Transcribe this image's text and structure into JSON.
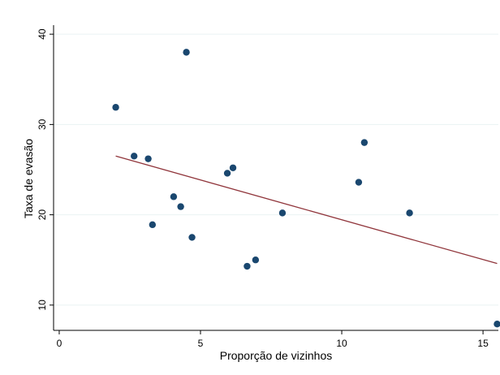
{
  "chart_data": {
    "type": "scatter",
    "xlabel": "Proporção de vizinhos",
    "ylabel": "Taxa de evasão",
    "xlim": [
      -0.2,
      15.4
    ],
    "ylim": [
      7.2,
      41
    ],
    "x_ticks": [
      0,
      5,
      10,
      15
    ],
    "y_ticks": [
      10,
      20,
      30,
      40
    ],
    "x_tick_labels": [
      "0",
      "5",
      "10",
      "15"
    ],
    "y_tick_labels": [
      "10",
      "20",
      "30",
      "40"
    ],
    "grid": "horizontal",
    "legend": "none",
    "points": [
      {
        "x": 2.0,
        "y": 31.9
      },
      {
        "x": 2.65,
        "y": 26.5
      },
      {
        "x": 3.15,
        "y": 26.2
      },
      {
        "x": 3.3,
        "y": 18.9
      },
      {
        "x": 4.05,
        "y": 22.0
      },
      {
        "x": 4.3,
        "y": 20.9
      },
      {
        "x": 4.5,
        "y": 38.0
      },
      {
        "x": 4.7,
        "y": 17.5
      },
      {
        "x": 5.95,
        "y": 24.6
      },
      {
        "x": 6.15,
        "y": 25.2
      },
      {
        "x": 6.65,
        "y": 14.3
      },
      {
        "x": 6.95,
        "y": 15.0
      },
      {
        "x": 7.9,
        "y": 20.2
      },
      {
        "x": 10.6,
        "y": 23.6
      },
      {
        "x": 10.8,
        "y": 28.0
      },
      {
        "x": 12.4,
        "y": 20.2
      },
      {
        "x": 15.5,
        "y": 7.9
      }
    ],
    "fit_line": {
      "x": [
        2.0,
        15.5
      ],
      "y": [
        26.5,
        14.6
      ]
    },
    "colors": {
      "points": "#1a476f",
      "fit_line": "#90353b",
      "grid": "#eaf2f3",
      "axis": "#000000"
    }
  }
}
